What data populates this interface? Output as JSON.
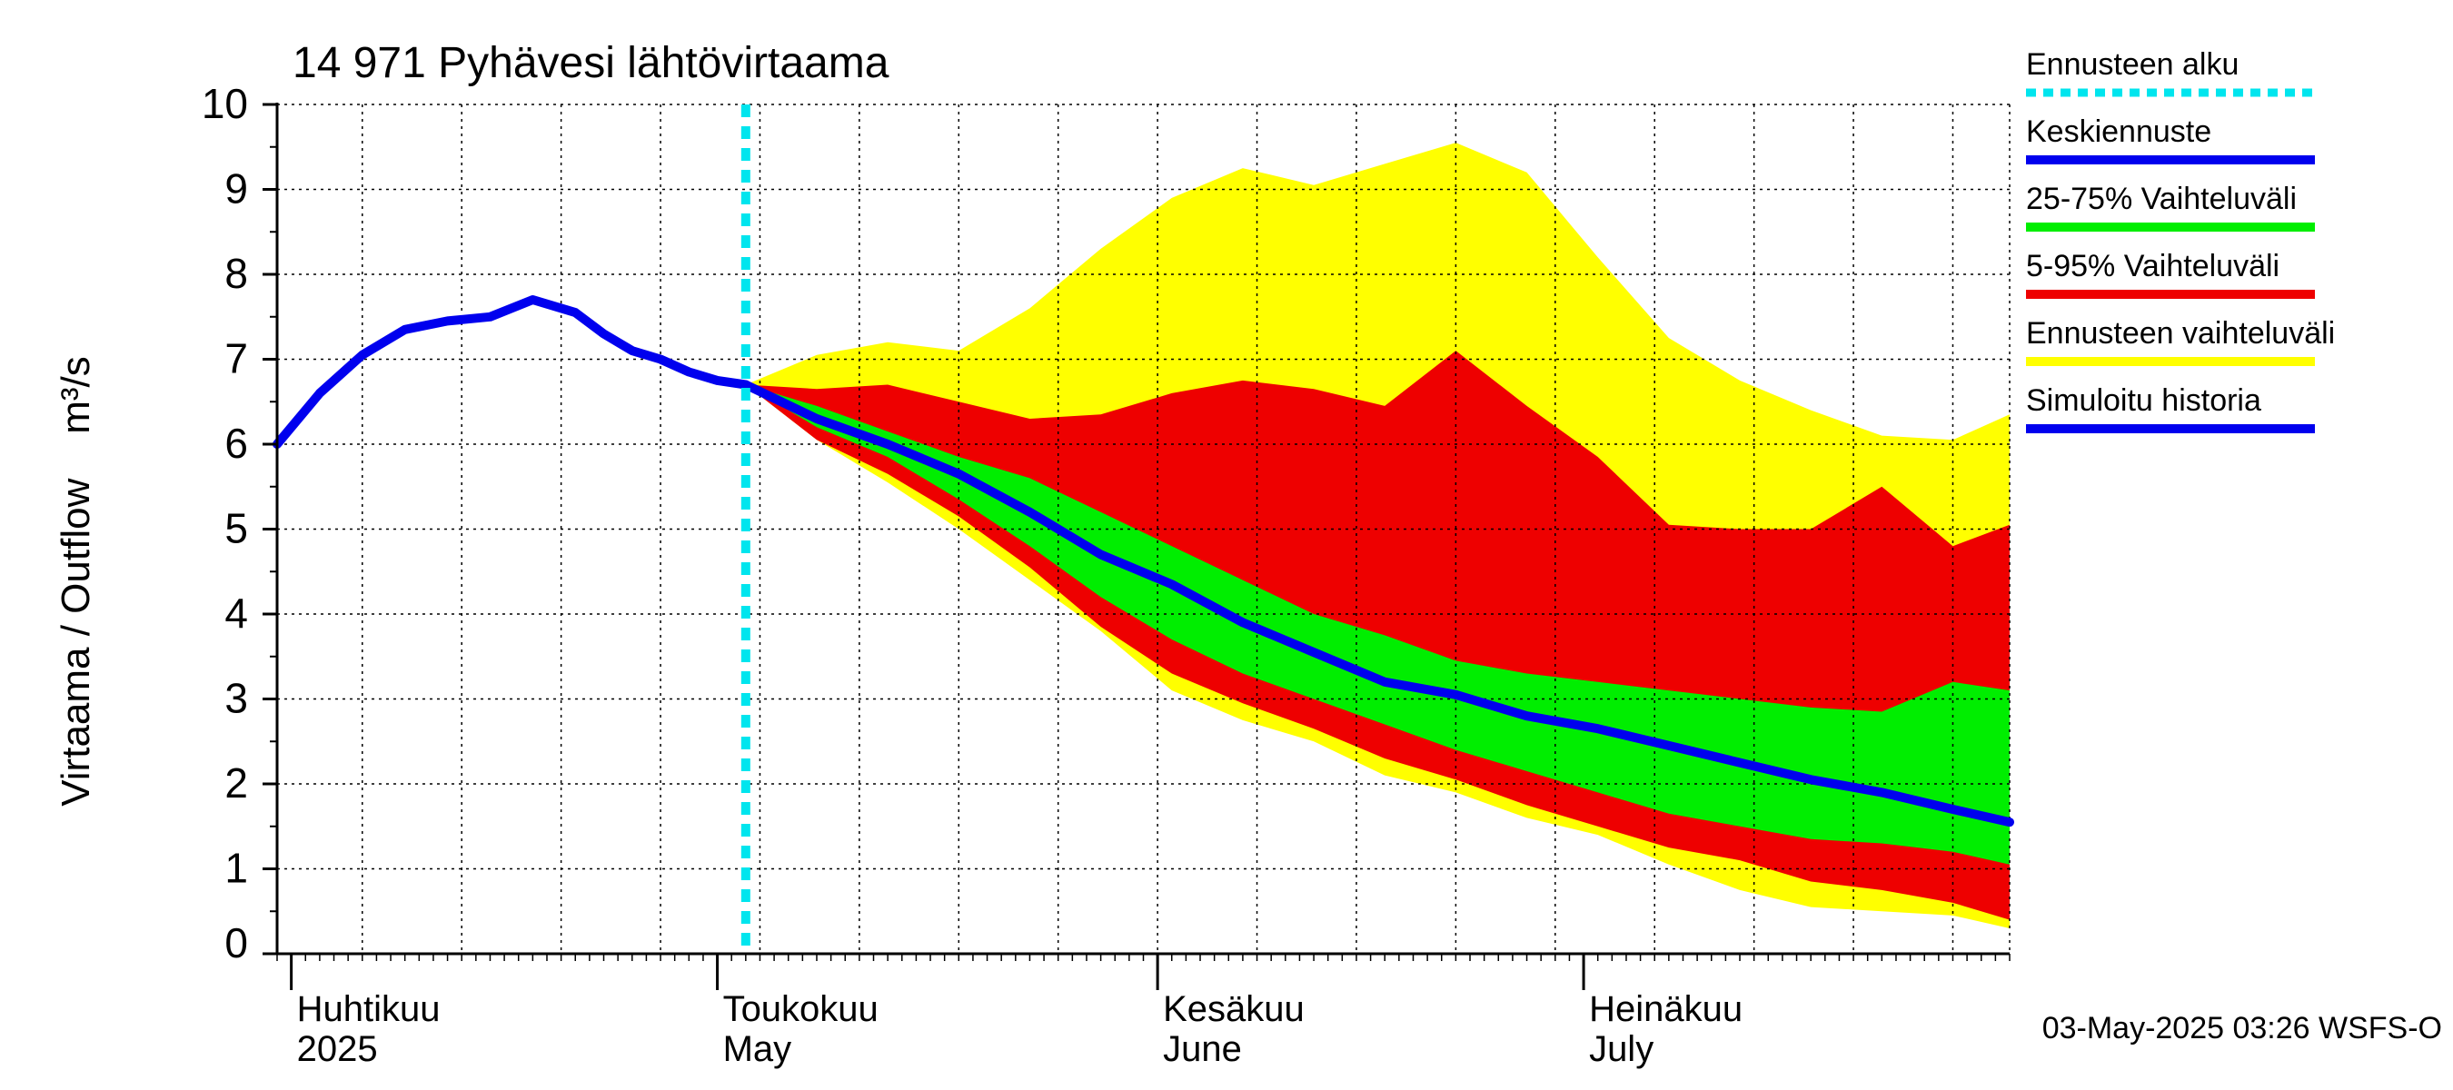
{
  "chart_data": {
    "type": "area",
    "title": "14 971 Pyhävesi lähtövirtaama",
    "ylabel": "Virtaama / Outflow    m³/s",
    "ylim": [
      0,
      10
    ],
    "yticks": [
      "0",
      "1",
      "2",
      "3",
      "4",
      "5",
      "6",
      "7",
      "8",
      "9",
      "10"
    ],
    "xlim": [
      "2025-03-31",
      "2025-07-31"
    ],
    "grid": true,
    "months": [
      {
        "date": "2025-04-01",
        "fi": "Huhtikuu",
        "en": "2025"
      },
      {
        "date": "2025-05-01",
        "fi": "Toukokuu",
        "en": "May"
      },
      {
        "date": "2025-06-01",
        "fi": "Kesäkuu",
        "en": "June"
      },
      {
        "date": "2025-07-01",
        "fi": "Heinäkuu",
        "en": "July"
      }
    ],
    "forecast_start": "2025-05-03",
    "footer": "03-May-2025 03:26 WSFS-O",
    "legend": {
      "placement": "right",
      "entries": [
        {
          "key": "forecast_start",
          "label": "Ennusteen alku",
          "color": "#00e5ee",
          "style": "dotted"
        },
        {
          "key": "median",
          "label": "Keskiennuste",
          "color": "#0000ee",
          "style": "line"
        },
        {
          "key": "p25_75",
          "label": "25-75% Vaihteluväli",
          "color": "#00ee00",
          "style": "band"
        },
        {
          "key": "p5_95",
          "label": "5-95% Vaihteluväli",
          "color": "#ee0000",
          "style": "band"
        },
        {
          "key": "range",
          "label": "Ennusteen vaihteluväli",
          "color": "#ffff00",
          "style": "band"
        },
        {
          "key": "history",
          "label": "Simuloitu historia",
          "color": "#0000ee",
          "style": "line"
        }
      ]
    },
    "history": {
      "x": [
        "2025-03-31",
        "2025-04-03",
        "2025-04-06",
        "2025-04-09",
        "2025-04-12",
        "2025-04-15",
        "2025-04-18",
        "2025-04-21",
        "2025-04-23",
        "2025-04-25",
        "2025-04-27",
        "2025-04-29",
        "2025-05-01",
        "2025-05-03"
      ],
      "y": [
        6.0,
        6.6,
        7.05,
        7.35,
        7.45,
        7.5,
        7.7,
        7.55,
        7.3,
        7.1,
        7.0,
        6.85,
        6.75,
        6.7
      ]
    },
    "median": {
      "x": [
        "2025-05-03",
        "2025-05-08",
        "2025-05-13",
        "2025-05-18",
        "2025-05-23",
        "2025-05-28",
        "2025-06-02",
        "2025-06-07",
        "2025-06-12",
        "2025-06-17",
        "2025-06-22",
        "2025-06-27",
        "2025-07-02",
        "2025-07-07",
        "2025-07-12",
        "2025-07-17",
        "2025-07-22",
        "2025-07-27",
        "2025-07-31"
      ],
      "y": [
        6.7,
        6.3,
        6.0,
        5.65,
        5.2,
        4.7,
        4.35,
        3.9,
        3.55,
        3.2,
        3.05,
        2.8,
        2.65,
        2.45,
        2.25,
        2.05,
        1.9,
        1.7,
        1.55
      ]
    },
    "band_x": [
      "2025-05-03",
      "2025-05-08",
      "2025-05-13",
      "2025-05-18",
      "2025-05-23",
      "2025-05-28",
      "2025-06-02",
      "2025-06-07",
      "2025-06-12",
      "2025-06-17",
      "2025-06-22",
      "2025-06-27",
      "2025-07-02",
      "2025-07-07",
      "2025-07-12",
      "2025-07-17",
      "2025-07-22",
      "2025-07-27",
      "2025-07-31"
    ],
    "range_low": [
      6.7,
      6.05,
      5.55,
      5.0,
      4.4,
      3.8,
      3.1,
      2.75,
      2.5,
      2.1,
      1.9,
      1.6,
      1.4,
      1.05,
      0.75,
      0.55,
      0.5,
      0.45,
      0.3
    ],
    "range_high": [
      6.7,
      7.05,
      7.2,
      7.1,
      7.6,
      8.3,
      8.9,
      9.25,
      9.05,
      9.3,
      9.55,
      9.2,
      8.2,
      7.25,
      6.75,
      6.4,
      6.1,
      6.05,
      6.35
    ],
    "p5": [
      6.7,
      6.05,
      5.65,
      5.15,
      4.55,
      3.85,
      3.3,
      2.95,
      2.65,
      2.3,
      2.05,
      1.75,
      1.5,
      1.25,
      1.1,
      0.85,
      0.75,
      0.6,
      0.4
    ],
    "p95": [
      6.7,
      6.65,
      6.7,
      6.5,
      6.3,
      6.35,
      6.6,
      6.75,
      6.65,
      6.45,
      7.1,
      6.45,
      5.85,
      5.05,
      5.0,
      5.0,
      5.5,
      4.8,
      5.05
    ],
    "p25": [
      6.7,
      6.2,
      5.85,
      5.35,
      4.8,
      4.2,
      3.7,
      3.3,
      3.0,
      2.7,
      2.4,
      2.15,
      1.9,
      1.65,
      1.5,
      1.35,
      1.3,
      1.2,
      1.05
    ],
    "p75": [
      6.7,
      6.45,
      6.15,
      5.85,
      5.6,
      5.2,
      4.8,
      4.4,
      4.0,
      3.75,
      3.45,
      3.3,
      3.2,
      3.1,
      3.0,
      2.9,
      2.85,
      3.2,
      3.1
    ]
  }
}
